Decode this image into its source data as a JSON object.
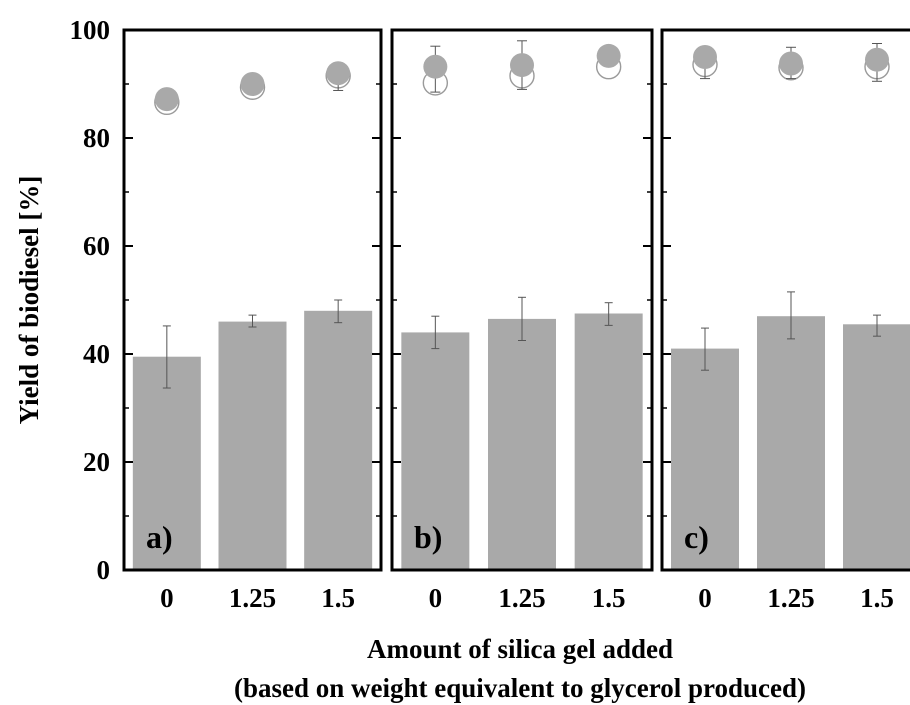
{
  "chart_data": {
    "type": "bar",
    "ylabel": "Yield of biodiesel [%]",
    "xlabel_line1": "Amount of silica gel added",
    "xlabel_line2": "(based on weight equivalent to glycerol produced)",
    "ylim": [
      0,
      100
    ],
    "yticks": [
      0,
      20,
      40,
      60,
      80,
      100
    ],
    "categories": [
      "0",
      "1.25",
      "1.5"
    ],
    "colors": {
      "bar": "#a9a9a9",
      "marker_filled": "#a9a9a9",
      "marker_open": "#9a9a9a",
      "axis": "#000000"
    },
    "panels": [
      {
        "label": "a)",
        "bars": [
          {
            "value": 39.5,
            "err_low": 33.7,
            "err_high": 45.2
          },
          {
            "value": 46.0,
            "err_low": 45.0,
            "err_high": 47.2
          },
          {
            "value": 48.0,
            "err_low": 45.8,
            "err_high": 50.0
          }
        ],
        "filled_markers": [
          {
            "value": 87.2,
            "err_low": 86.4,
            "err_high": 88.0
          },
          {
            "value": 90.0,
            "err_low": 89.2,
            "err_high": 90.8
          },
          {
            "value": 92.0,
            "err_low": 88.8,
            "err_high": 93.5
          }
        ],
        "open_markers": [
          86.6,
          89.4,
          91.5
        ]
      },
      {
        "label": "b)",
        "bars": [
          {
            "value": 44.0,
            "err_low": 41.0,
            "err_high": 47.0
          },
          {
            "value": 46.5,
            "err_low": 42.5,
            "err_high": 50.5
          },
          {
            "value": 47.5,
            "err_low": 45.3,
            "err_high": 49.5
          }
        ],
        "filled_markers": [
          {
            "value": 93.2,
            "err_low": 88.5,
            "err_high": 97.0
          },
          {
            "value": 93.5,
            "err_low": 89.0,
            "err_high": 98.0
          },
          {
            "value": 95.2,
            "err_low": 93.3,
            "err_high": 96.5
          }
        ],
        "open_markers": [
          90.2,
          91.5,
          93.2
        ]
      },
      {
        "label": "c)",
        "bars": [
          {
            "value": 41.0,
            "err_low": 37.0,
            "err_high": 44.8
          },
          {
            "value": 47.0,
            "err_low": 42.8,
            "err_high": 51.5
          },
          {
            "value": 45.5,
            "err_low": 43.3,
            "err_high": 47.2
          }
        ],
        "filled_markers": [
          {
            "value": 95.0,
            "err_low": 91.0,
            "err_high": 96.5
          },
          {
            "value": 93.8,
            "err_low": 91.0,
            "err_high": 96.8
          },
          {
            "value": 94.5,
            "err_low": 90.5,
            "err_high": 97.5
          }
        ],
        "open_markers": [
          93.6,
          93.0,
          93.2
        ]
      }
    ]
  }
}
